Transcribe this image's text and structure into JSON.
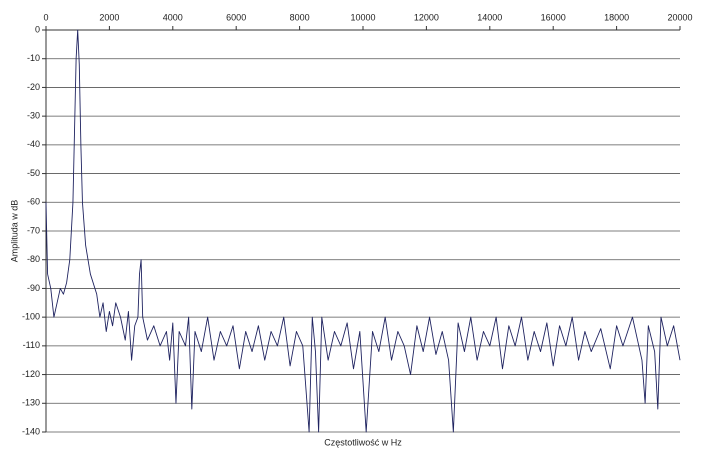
{
  "chart_data": {
    "type": "line",
    "x_label": "Częstotliwość w Hz",
    "y_label": "Amplituda w dB",
    "x": [
      0,
      50,
      150,
      250,
      350,
      450,
      550,
      650,
      750,
      850,
      900,
      950,
      1000,
      1050,
      1100,
      1150,
      1250,
      1400,
      1600,
      1700,
      1800,
      1900,
      2000,
      2100,
      2200,
      2350,
      2500,
      2600,
      2700,
      2800,
      2900,
      2950,
      3000,
      3050,
      3200,
      3400,
      3600,
      3800,
      3900,
      4000,
      4100,
      4200,
      4400,
      4500,
      4600,
      4700,
      4900,
      5100,
      5300,
      5500,
      5700,
      5900,
      6100,
      6300,
      6500,
      6700,
      6900,
      7100,
      7300,
      7500,
      7700,
      7900,
      8100,
      8300,
      8400,
      8500,
      8600,
      8700,
      8900,
      9100,
      9300,
      9500,
      9700,
      9900,
      10100,
      10300,
      10500,
      10700,
      10900,
      11100,
      11300,
      11500,
      11700,
      11900,
      12100,
      12300,
      12500,
      12700,
      12850,
      13000,
      13200,
      13400,
      13600,
      13800,
      14000,
      14200,
      14400,
      14600,
      14800,
      15000,
      15200,
      15400,
      15600,
      15800,
      16000,
      16200,
      16400,
      16600,
      16800,
      17000,
      17200,
      17500,
      17800,
      18000,
      18200,
      18500,
      18800,
      18900,
      19000,
      19200,
      19300,
      19400,
      19600,
      19800,
      20000
    ],
    "values": [
      -60,
      -85,
      -90,
      -100,
      -95,
      -90,
      -92,
      -88,
      -80,
      -60,
      -35,
      -10,
      0,
      -12,
      -40,
      -60,
      -75,
      -85,
      -92,
      -100,
      -95,
      -105,
      -98,
      -103,
      -95,
      -100,
      -108,
      -98,
      -115,
      -103,
      -100,
      -85,
      -80,
      -100,
      -108,
      -103,
      -110,
      -105,
      -115,
      -102,
      -130,
      -105,
      -110,
      -100,
      -132,
      -105,
      -112,
      -100,
      -115,
      -105,
      -110,
      -103,
      -118,
      -105,
      -112,
      -103,
      -115,
      -105,
      -110,
      -100,
      -117,
      -105,
      -110,
      -140,
      -100,
      -112,
      -140,
      -100,
      -115,
      -105,
      -110,
      -102,
      -118,
      -105,
      -140,
      -105,
      -112,
      -100,
      -115,
      -105,
      -110,
      -120,
      -103,
      -112,
      -100,
      -113,
      -105,
      -115,
      -140,
      -102,
      -112,
      -100,
      -115,
      -105,
      -110,
      -100,
      -118,
      -103,
      -110,
      -100,
      -115,
      -105,
      -112,
      -102,
      -117,
      -103,
      -110,
      -100,
      -115,
      -105,
      -112,
      -104,
      -118,
      -103,
      -110,
      -100,
      -115,
      -130,
      -103,
      -112,
      -132,
      -100,
      -110,
      -103,
      -115
    ],
    "color": "#1f2360",
    "xlim": [
      0,
      20000
    ],
    "xticks": [
      0,
      2000,
      4000,
      6000,
      8000,
      10000,
      12000,
      14000,
      16000,
      18000,
      20000
    ],
    "ylim": [
      -140,
      0
    ],
    "yticks": [
      0,
      -10,
      -20,
      -30,
      -40,
      -50,
      -60,
      -70,
      -80,
      -90,
      -100,
      -110,
      -120,
      -130,
      -140
    ],
    "grid": true
  }
}
